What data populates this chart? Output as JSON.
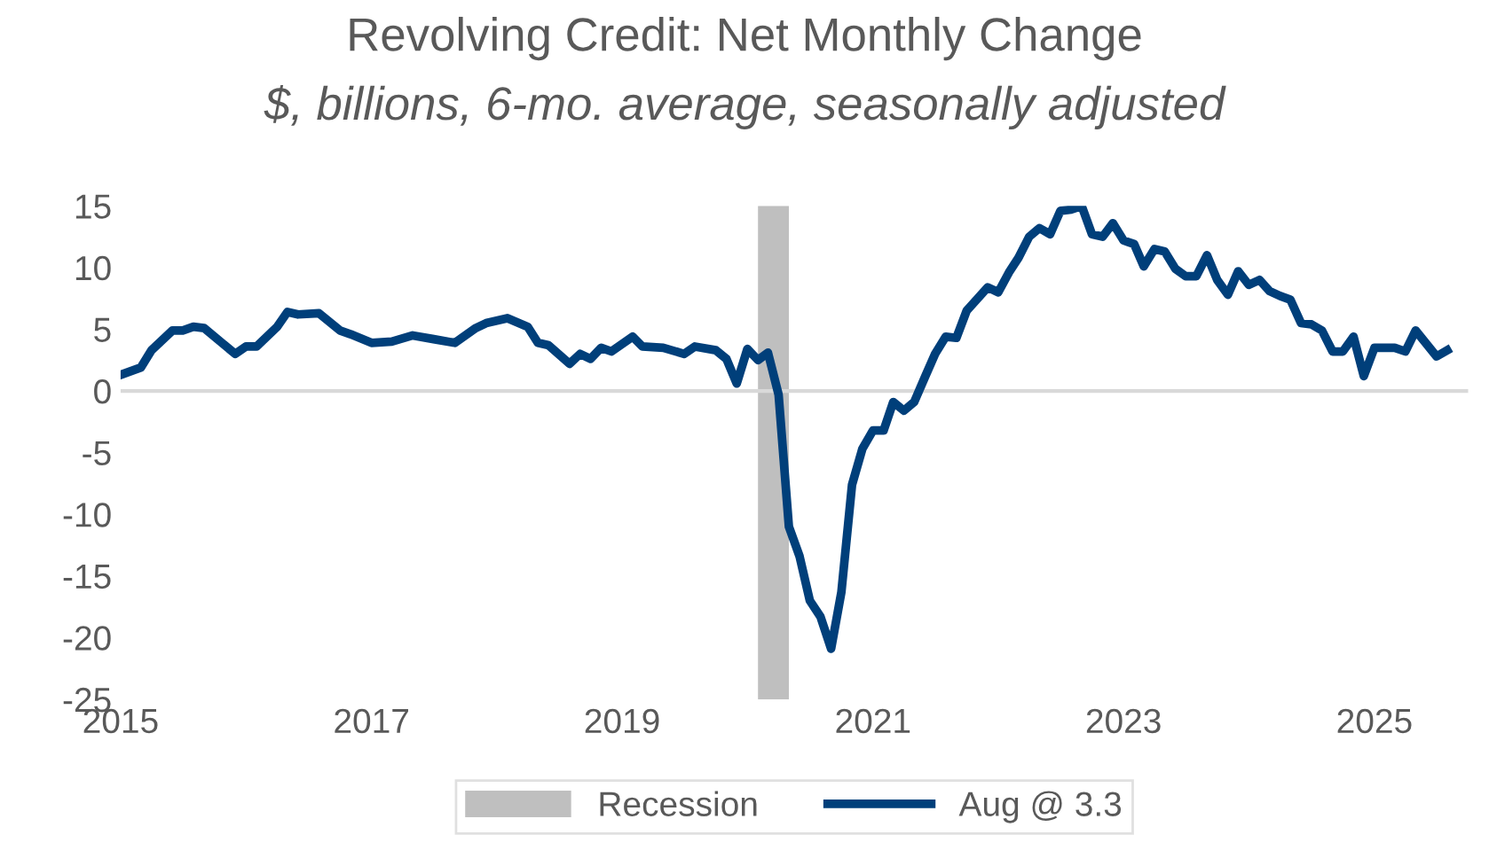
{
  "chart_data": {
    "type": "line",
    "title": "Revolving Credit: Net Monthly Change",
    "subtitle": "$, billions, 6-mo. average, seasonally adjusted",
    "xlim": [
      "2015-01",
      "2025-10"
    ],
    "xticks": [
      {
        "value": "2015-01",
        "label": "2015"
      },
      {
        "value": "2017-01",
        "label": "2017"
      },
      {
        "value": "2019-01",
        "label": "2019"
      },
      {
        "value": "2021-01",
        "label": "2021"
      },
      {
        "value": "2023-01",
        "label": "2023"
      },
      {
        "value": "2025-01",
        "label": "2025"
      }
    ],
    "ylim": [
      -25,
      15
    ],
    "yticks": [
      -25,
      -20,
      -15,
      -10,
      -5,
      0,
      5,
      10,
      15
    ],
    "grid": false,
    "legend": "bottom",
    "marker": "none",
    "line_style": "solid",
    "ref_lines": [
      {
        "axis": "y",
        "value": 0,
        "color": "#d9d9d9"
      }
    ],
    "bands": [
      {
        "axis": "x",
        "from": "2020-02",
        "to": "2020-05",
        "label": "Recession",
        "color": "#bfbfbf"
      }
    ],
    "series": [
      {
        "name": "Aug @ 3.3",
        "color": "#003f7a",
        "x": [
          "2015-01",
          "2015-03",
          "2015-04",
          "2015-06",
          "2015-07",
          "2015-08",
          "2015-09",
          "2015-12",
          "2016-01",
          "2016-02",
          "2016-04",
          "2016-05",
          "2016-06",
          "2016-08",
          "2016-10",
          "2016-11",
          "2017-01",
          "2017-03",
          "2017-05",
          "2017-07",
          "2017-09",
          "2017-11",
          "2017-12",
          "2018-02",
          "2018-04",
          "2018-05",
          "2018-06",
          "2018-08",
          "2018-09",
          "2018-10",
          "2018-11",
          "2018-12",
          "2019-02",
          "2019-03",
          "2019-05",
          "2019-07",
          "2019-08",
          "2019-10",
          "2019-11",
          "2019-12",
          "2020-01",
          "2020-02",
          "2020-03",
          "2020-04",
          "2020-05",
          "2020-06",
          "2020-07",
          "2020-08",
          "2020-09",
          "2020-10",
          "2020-11",
          "2020-12",
          "2021-01",
          "2021-02",
          "2021-03",
          "2021-04",
          "2021-05",
          "2021-06",
          "2021-07",
          "2021-08",
          "2021-09",
          "2021-10",
          "2021-12",
          "2022-01",
          "2022-02",
          "2022-03",
          "2022-04",
          "2022-05",
          "2022-06",
          "2022-07",
          "2022-08",
          "2022-09",
          "2022-10",
          "2022-11",
          "2022-12",
          "2023-01",
          "2023-02",
          "2023-03",
          "2023-04",
          "2023-05",
          "2023-06",
          "2023-07",
          "2023-08",
          "2023-09",
          "2023-10",
          "2023-11",
          "2023-12",
          "2024-01",
          "2024-02",
          "2024-03",
          "2024-04",
          "2024-05",
          "2024-06",
          "2024-07",
          "2024-08",
          "2024-09",
          "2024-10",
          "2024-11",
          "2024-12",
          "2025-01",
          "2025-03",
          "2025-04",
          "2025-05",
          "2025-07",
          "2025-08"
        ],
        "values": [
          1.3,
          1.9,
          3.3,
          4.9,
          4.9,
          5.2,
          5.1,
          3.0,
          3.6,
          3.6,
          5.2,
          6.4,
          6.2,
          6.3,
          4.9,
          4.6,
          3.9,
          4.0,
          4.5,
          4.2,
          3.9,
          5.1,
          5.5,
          5.9,
          5.2,
          3.9,
          3.7,
          2.2,
          3.0,
          2.6,
          3.5,
          3.2,
          4.4,
          3.6,
          3.5,
          3.0,
          3.6,
          3.3,
          2.6,
          0.6,
          3.4,
          2.5,
          3.1,
          -0.3,
          -11.0,
          -13.4,
          -17.0,
          -18.3,
          -20.9,
          -16.3,
          -7.6,
          -4.7,
          -3.2,
          -3.2,
          -0.9,
          -1.6,
          -0.9,
          1.1,
          3.0,
          4.4,
          4.3,
          6.5,
          8.4,
          8.0,
          9.6,
          10.8,
          12.5,
          13.2,
          12.7,
          14.6,
          14.7,
          15.0,
          12.7,
          12.5,
          13.6,
          12.2,
          11.9,
          10.1,
          11.5,
          11.3,
          9.9,
          9.3,
          9.3,
          11.0,
          9.0,
          7.8,
          9.7,
          8.6,
          9.0,
          8.1,
          7.7,
          7.4,
          5.5,
          5.4,
          4.9,
          3.2,
          3.2,
          4.4,
          1.2,
          3.5,
          3.5,
          3.2,
          4.9,
          2.8,
          3.3
        ]
      }
    ]
  }
}
